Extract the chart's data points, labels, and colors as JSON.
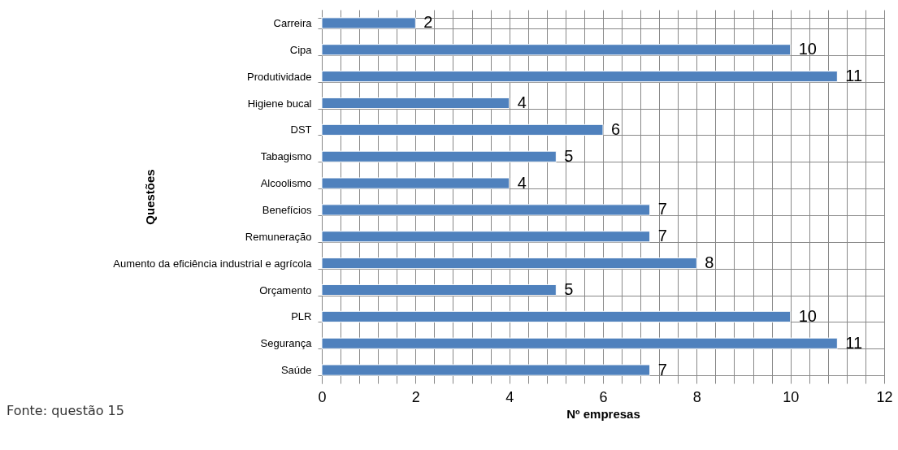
{
  "chart_data": {
    "type": "bar",
    "orientation": "horizontal",
    "xlabel": "Nº empresas",
    "ylabel": "Questões",
    "categories": [
      "Carreira",
      "Cipa",
      "Produtividade",
      "Higiene bucal",
      "DST",
      "Tabagismo",
      "Alcoolismo",
      "Benefícios",
      "Remuneração",
      "Aumento da eficiência industrial e agrícola",
      "Orçamento",
      "PLR",
      "Segurança",
      "Saúde"
    ],
    "values": [
      2,
      10,
      11,
      4,
      6,
      5,
      4,
      7,
      7,
      8,
      5,
      10,
      11,
      7
    ],
    "color": "#4f81bd",
    "data_labels": true,
    "grid": true,
    "xlim": [
      0,
      12
    ],
    "xticks": [
      0,
      {
        "value": 0.4,
        "label": null
      },
      {
        "value": 0.8,
        "label": null
      },
      {
        "value": 1.2,
        "label": null
      },
      {
        "value": 1.6,
        "label": null
      },
      2,
      {
        "value": 2.4,
        "label": null
      },
      {
        "value": 2.8,
        "label": null
      },
      {
        "value": 3.2,
        "label": null
      },
      {
        "value": 3.6,
        "label": null
      },
      4,
      {
        "value": 4.4,
        "label": null
      },
      {
        "value": 4.8,
        "label": null
      },
      {
        "value": 5.2,
        "label": null
      },
      {
        "value": 5.6,
        "label": null
      },
      6,
      {
        "value": 6.4,
        "label": null
      },
      {
        "value": 6.8,
        "label": null
      },
      {
        "value": 7.2,
        "label": null
      },
      {
        "value": 7.6,
        "label": null
      },
      8,
      {
        "value": 8.4,
        "label": null
      },
      {
        "value": 8.8,
        "label": null
      },
      {
        "value": 9.2,
        "label": null
      },
      {
        "value": 9.6,
        "label": null
      },
      10,
      {
        "value": 10.4,
        "label": null
      },
      {
        "value": 10.8,
        "label": null
      },
      {
        "value": 11.2,
        "label": null
      },
      {
        "value": 11.6,
        "label": null
      },
      12
    ],
    "annotations": [
      "Fonte: questão 15"
    ]
  }
}
